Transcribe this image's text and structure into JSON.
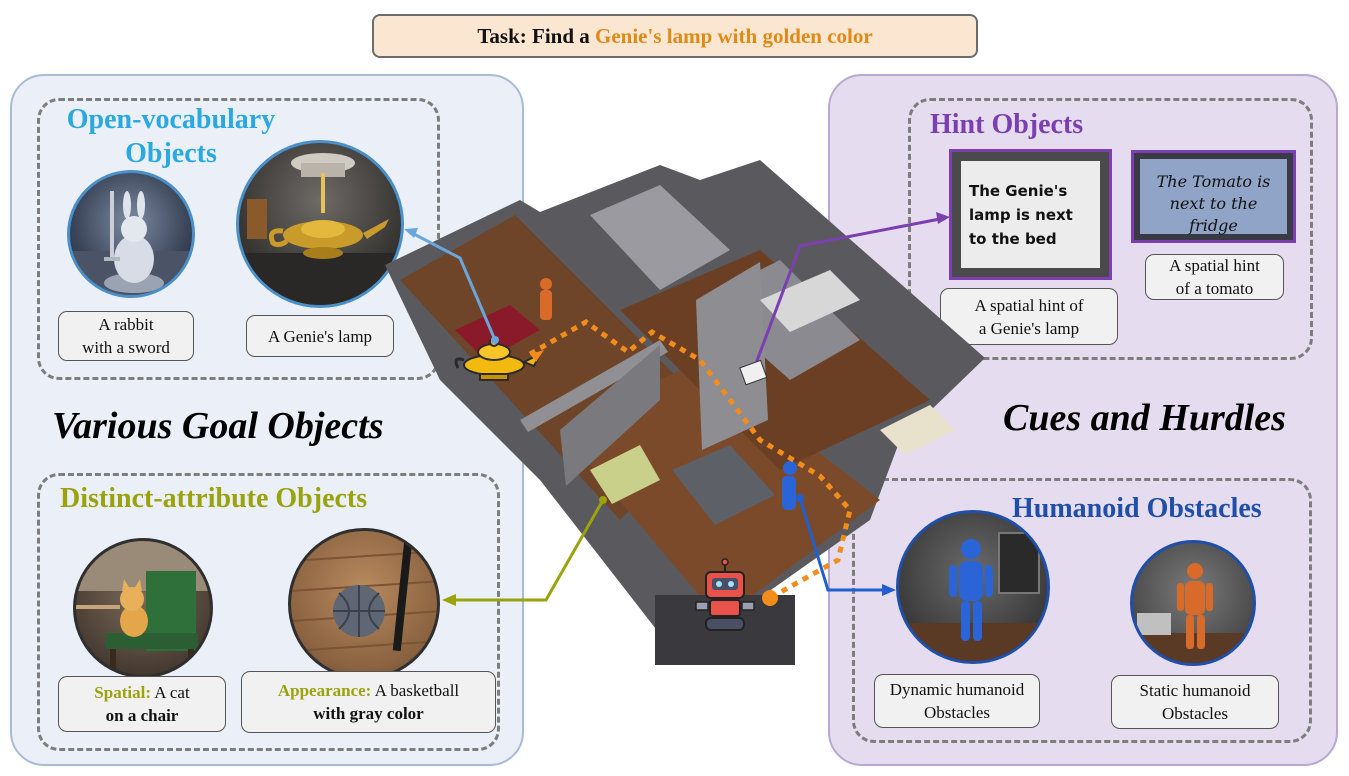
{
  "task": {
    "prefix": "Task: Find a ",
    "highlight": "Genie's lamp with golden color"
  },
  "left": {
    "heading": "Various Goal Objects",
    "open_vocab": {
      "title_line1": "Open-vocabulary",
      "title_line2": "Objects",
      "caption_rabbit_1": "A rabbit",
      "caption_rabbit_2": "with a sword",
      "caption_lamp": "A Genie's lamp"
    },
    "distinct": {
      "title": "Distinct-attribute Objects",
      "cat_label": "Spatial:",
      "cat_text_1": " A cat",
      "cat_text_2": "on a chair",
      "ball_label": "Appearance:",
      "ball_text_1": " A basketball",
      "ball_text_2": "with gray color"
    }
  },
  "right": {
    "heading": "Cues and Hurdles",
    "hints": {
      "title": "Hint Objects",
      "card1_text": "The Genie's lamp is next to the bed",
      "card2_line1": "The Tomato is",
      "card2_line2": "next to the fridge",
      "caption1_1": "A spatial hint of",
      "caption1_2": "a Genie's lamp",
      "caption2_1": "A spatial hint",
      "caption2_2": "of a tomato"
    },
    "humanoid": {
      "title": "Humanoid Obstacles",
      "caption1_1": "Dynamic humanoid",
      "caption1_2": "Obstacles",
      "caption2_1": "Static humanoid",
      "caption2_2": "Obstacles"
    }
  },
  "colors": {
    "open_vocab": "#2aa8e0",
    "distinct": "#9aa20c",
    "hint": "#7b3fb0",
    "humanoid": "#1f4fa8",
    "path": "#f28c1c"
  },
  "icons": [
    "genie-lamp-icon",
    "robot-icon"
  ]
}
